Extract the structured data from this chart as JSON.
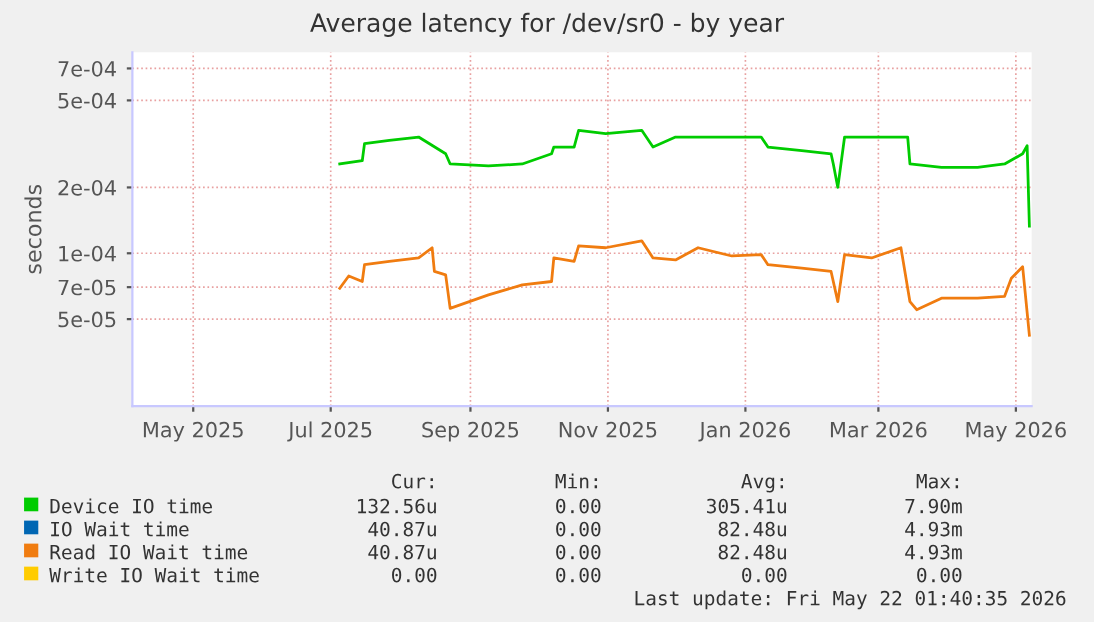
{
  "chart_data": {
    "type": "line",
    "title": "Average latency for /dev/sr0 - by year",
    "ylabel": "seconds",
    "log": "y",
    "grid": true,
    "legend": "bottom",
    "marker": "none",
    "line_style": "solid",
    "xlim": [
      "2025-04-18",
      "2026-05-22"
    ],
    "xticks": [
      {
        "value": "2025-05-15",
        "label": "May 2025"
      },
      {
        "value": "2025-07-15",
        "label": "Jul 2025"
      },
      {
        "value": "2025-09-15",
        "label": "Sep 2025"
      },
      {
        "value": "2025-11-15",
        "label": "Nov 2025"
      },
      {
        "value": "2026-01-15",
        "label": "Jan 2026"
      },
      {
        "value": "2026-03-15",
        "label": "Mar 2026"
      },
      {
        "value": "2026-05-15",
        "label": "May 2026"
      }
    ],
    "ylim": [
      2e-05,
      0.00083
    ],
    "yticks": [
      {
        "value": 5e-05,
        "label": "5e-05"
      },
      {
        "value": 7e-05,
        "label": "7e-05"
      },
      {
        "value": 0.0001,
        "label": "1e-04"
      },
      {
        "value": 0.0002,
        "label": "2e-04"
      },
      {
        "value": 0.0005,
        "label": "5e-04"
      },
      {
        "value": 0.0007,
        "label": "7e-04"
      }
    ],
    "series": [
      {
        "name": "Device IO time",
        "color": "#00cc00",
        "x": [
          "2025-07-19",
          "2025-07-29",
          "2025-07-30",
          "2025-08-10",
          "2025-08-23",
          "2025-09-04",
          "2025-09-06",
          "2025-09-23",
          "2025-10-08",
          "2025-10-21",
          "2025-10-22",
          "2025-10-31",
          "2025-11-02",
          "2025-11-14",
          "2025-11-30",
          "2025-12-05",
          "2025-12-15",
          "2025-12-31",
          "2026-01-22",
          "2026-01-25",
          "2026-02-09",
          "2026-02-22",
          "2026-02-23",
          "2026-02-25",
          "2026-02-28",
          "2026-03-12",
          "2026-03-28",
          "2026-03-29",
          "2026-04-12",
          "2026-04-28",
          "2026-05-10",
          "2026-05-18",
          "2026-05-20",
          "2026-05-21"
        ],
        "values": [
          0.000256,
          0.000265,
          0.000317,
          0.000328,
          0.00034,
          0.000285,
          0.000256,
          0.000251,
          0.000256,
          0.000285,
          0.000306,
          0.000306,
          0.000365,
          0.000352,
          0.000365,
          0.000306,
          0.00034,
          0.00034,
          0.00034,
          0.000306,
          0.000295,
          0.000285,
          0.000256,
          0.0002,
          0.00034,
          0.00034,
          0.00034,
          0.000256,
          0.000247,
          0.000247,
          0.000256,
          0.000285,
          0.00031,
          0.000133
        ]
      },
      {
        "name": "IO Wait time",
        "color": "#0066b3"
      },
      {
        "name": "Read IO Wait time",
        "color": "#f07c10",
        "x": [
          "2025-07-19",
          "2025-07-23",
          "2025-07-29",
          "2025-07-30",
          "2025-08-10",
          "2025-08-23",
          "2025-08-29",
          "2025-08-30",
          "2025-09-04",
          "2025-09-06",
          "2025-09-23",
          "2025-10-08",
          "2025-10-21",
          "2025-10-22",
          "2025-10-31",
          "2025-11-02",
          "2025-11-14",
          "2025-11-30",
          "2025-12-05",
          "2025-12-15",
          "2025-12-25",
          "2026-01-09",
          "2026-01-22",
          "2026-01-25",
          "2026-02-09",
          "2026-02-22",
          "2026-02-25",
          "2026-02-28",
          "2026-03-12",
          "2026-03-25",
          "2026-03-29",
          "2026-04-01",
          "2026-04-12",
          "2026-04-28",
          "2026-05-10",
          "2026-05-13",
          "2026-05-18",
          "2026-05-21"
        ],
        "values": [
          6.92e-05,
          7.87e-05,
          7.43e-05,
          8.87e-05,
          9.19e-05,
          9.52e-05,
          0.000106,
          8.26e-05,
          7.97e-05,
          5.6e-05,
          6.45e-05,
          7.17e-05,
          7.43e-05,
          9.52e-05,
          9.19e-05,
          0.000108,
          0.000106,
          0.000114,
          9.52e-05,
          9.32e-05,
          0.000106,
          9.72e-05,
          9.86e-05,
          8.87e-05,
          8.56e-05,
          8.26e-05,
          6.01e-05,
          9.86e-05,
          9.52e-05,
          0.000106,
          6.01e-05,
          5.52e-05,
          6.23e-05,
          6.23e-05,
          6.36e-05,
          7.69e-05,
          8.68e-05,
          4.22e-05
        ]
      },
      {
        "name": "Write IO Wait time",
        "color": "#ffcc00"
      }
    ],
    "annotations": [
      "Cur:",
      "Min:",
      "Avg:",
      "Max:",
      "132.56u",
      "0.00",
      "305.41u",
      "7.90m",
      "40.87u",
      "0.00",
      "82.48u",
      "4.93m",
      "40.87u",
      "0.00",
      "82.48u",
      "4.93m",
      "0.00",
      "0.00",
      "0.00",
      "0.00",
      "Last update: Fri May 22 01:40:35 2026"
    ]
  }
}
